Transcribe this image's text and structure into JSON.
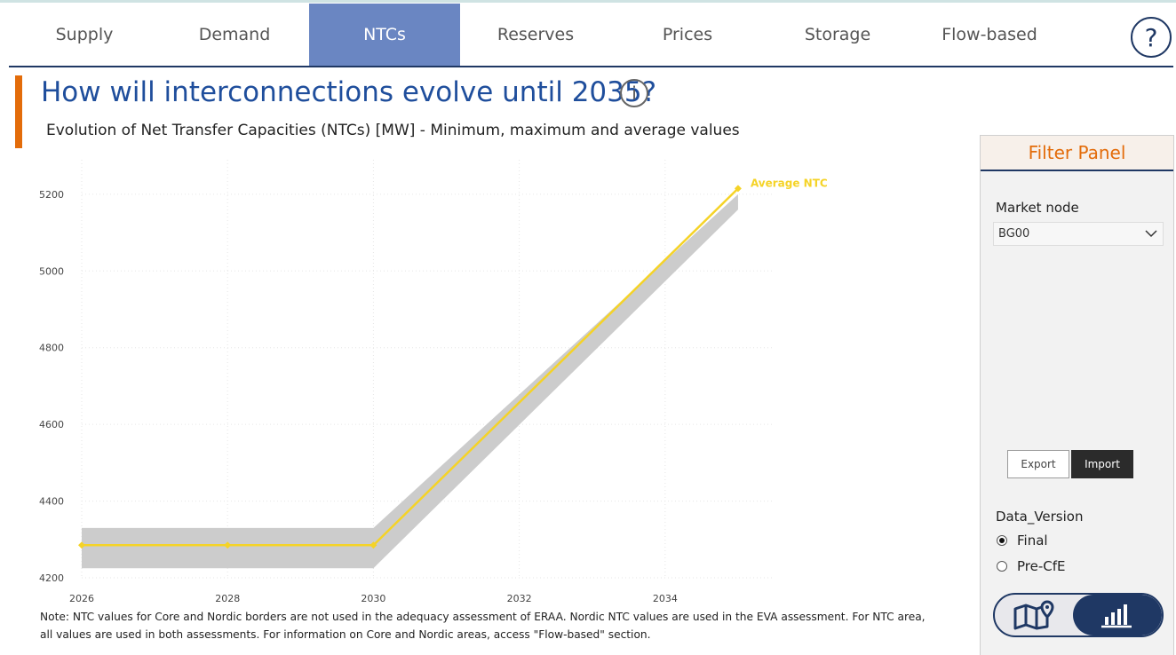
{
  "tabs": [
    {
      "label": "Supply"
    },
    {
      "label": "Demand"
    },
    {
      "label": "NTCs",
      "active": true
    },
    {
      "label": "Reserves"
    },
    {
      "label": "Prices"
    },
    {
      "label": "Storage"
    },
    {
      "label": "Flow-based"
    }
  ],
  "help_icon": "question-mark-icon",
  "page": {
    "title": "How will interconnections evolve until 2035?",
    "info_icon": "info-icon",
    "subtitle": "Evolution of Net Transfer Capacities (NTCs) [MW] - Minimum, maximum and average values",
    "note": "Note: NTC values for Core and Nordic borders are not used in the adequacy assessment of ERAA. Nordic NTC values are used in the EVA assessment. For NTC area, all values are used in both assessments. For information on Core and Nordic areas, access \"Flow-based\" section."
  },
  "chart_data": {
    "type": "line",
    "x": [
      2026,
      2028,
      2030,
      2035
    ],
    "series": [
      {
        "name": "Average NTC",
        "values": [
          4285,
          4285,
          4285,
          5215
        ],
        "color": "#f5d327"
      }
    ],
    "band_min": [
      4225,
      4225,
      4225,
      5160
    ],
    "band_max": [
      4330,
      4330,
      4330,
      5200
    ],
    "band_color": "#cccccc",
    "xticks": [
      2026,
      2028,
      2030,
      2032,
      2034
    ],
    "yticks": [
      4200,
      4400,
      4600,
      4800,
      5000,
      5200
    ],
    "xlim": [
      2026,
      2035.5
    ],
    "ylim": [
      4200,
      5290
    ],
    "grid": true,
    "legend": "inline label at line end"
  },
  "filter_panel": {
    "title": "Filter Panel",
    "market_node_label": "Market node",
    "market_node_value": "BG00",
    "export_label": "Export",
    "import_label": "Import",
    "data_version_label": "Data_Version",
    "options": [
      {
        "label": "Final",
        "selected": true
      },
      {
        "label": "Pre-CfE",
        "selected": false
      }
    ],
    "toggle": {
      "left_icon": "map-pin-icon",
      "right_icon": "bar-chart-icon"
    }
  }
}
